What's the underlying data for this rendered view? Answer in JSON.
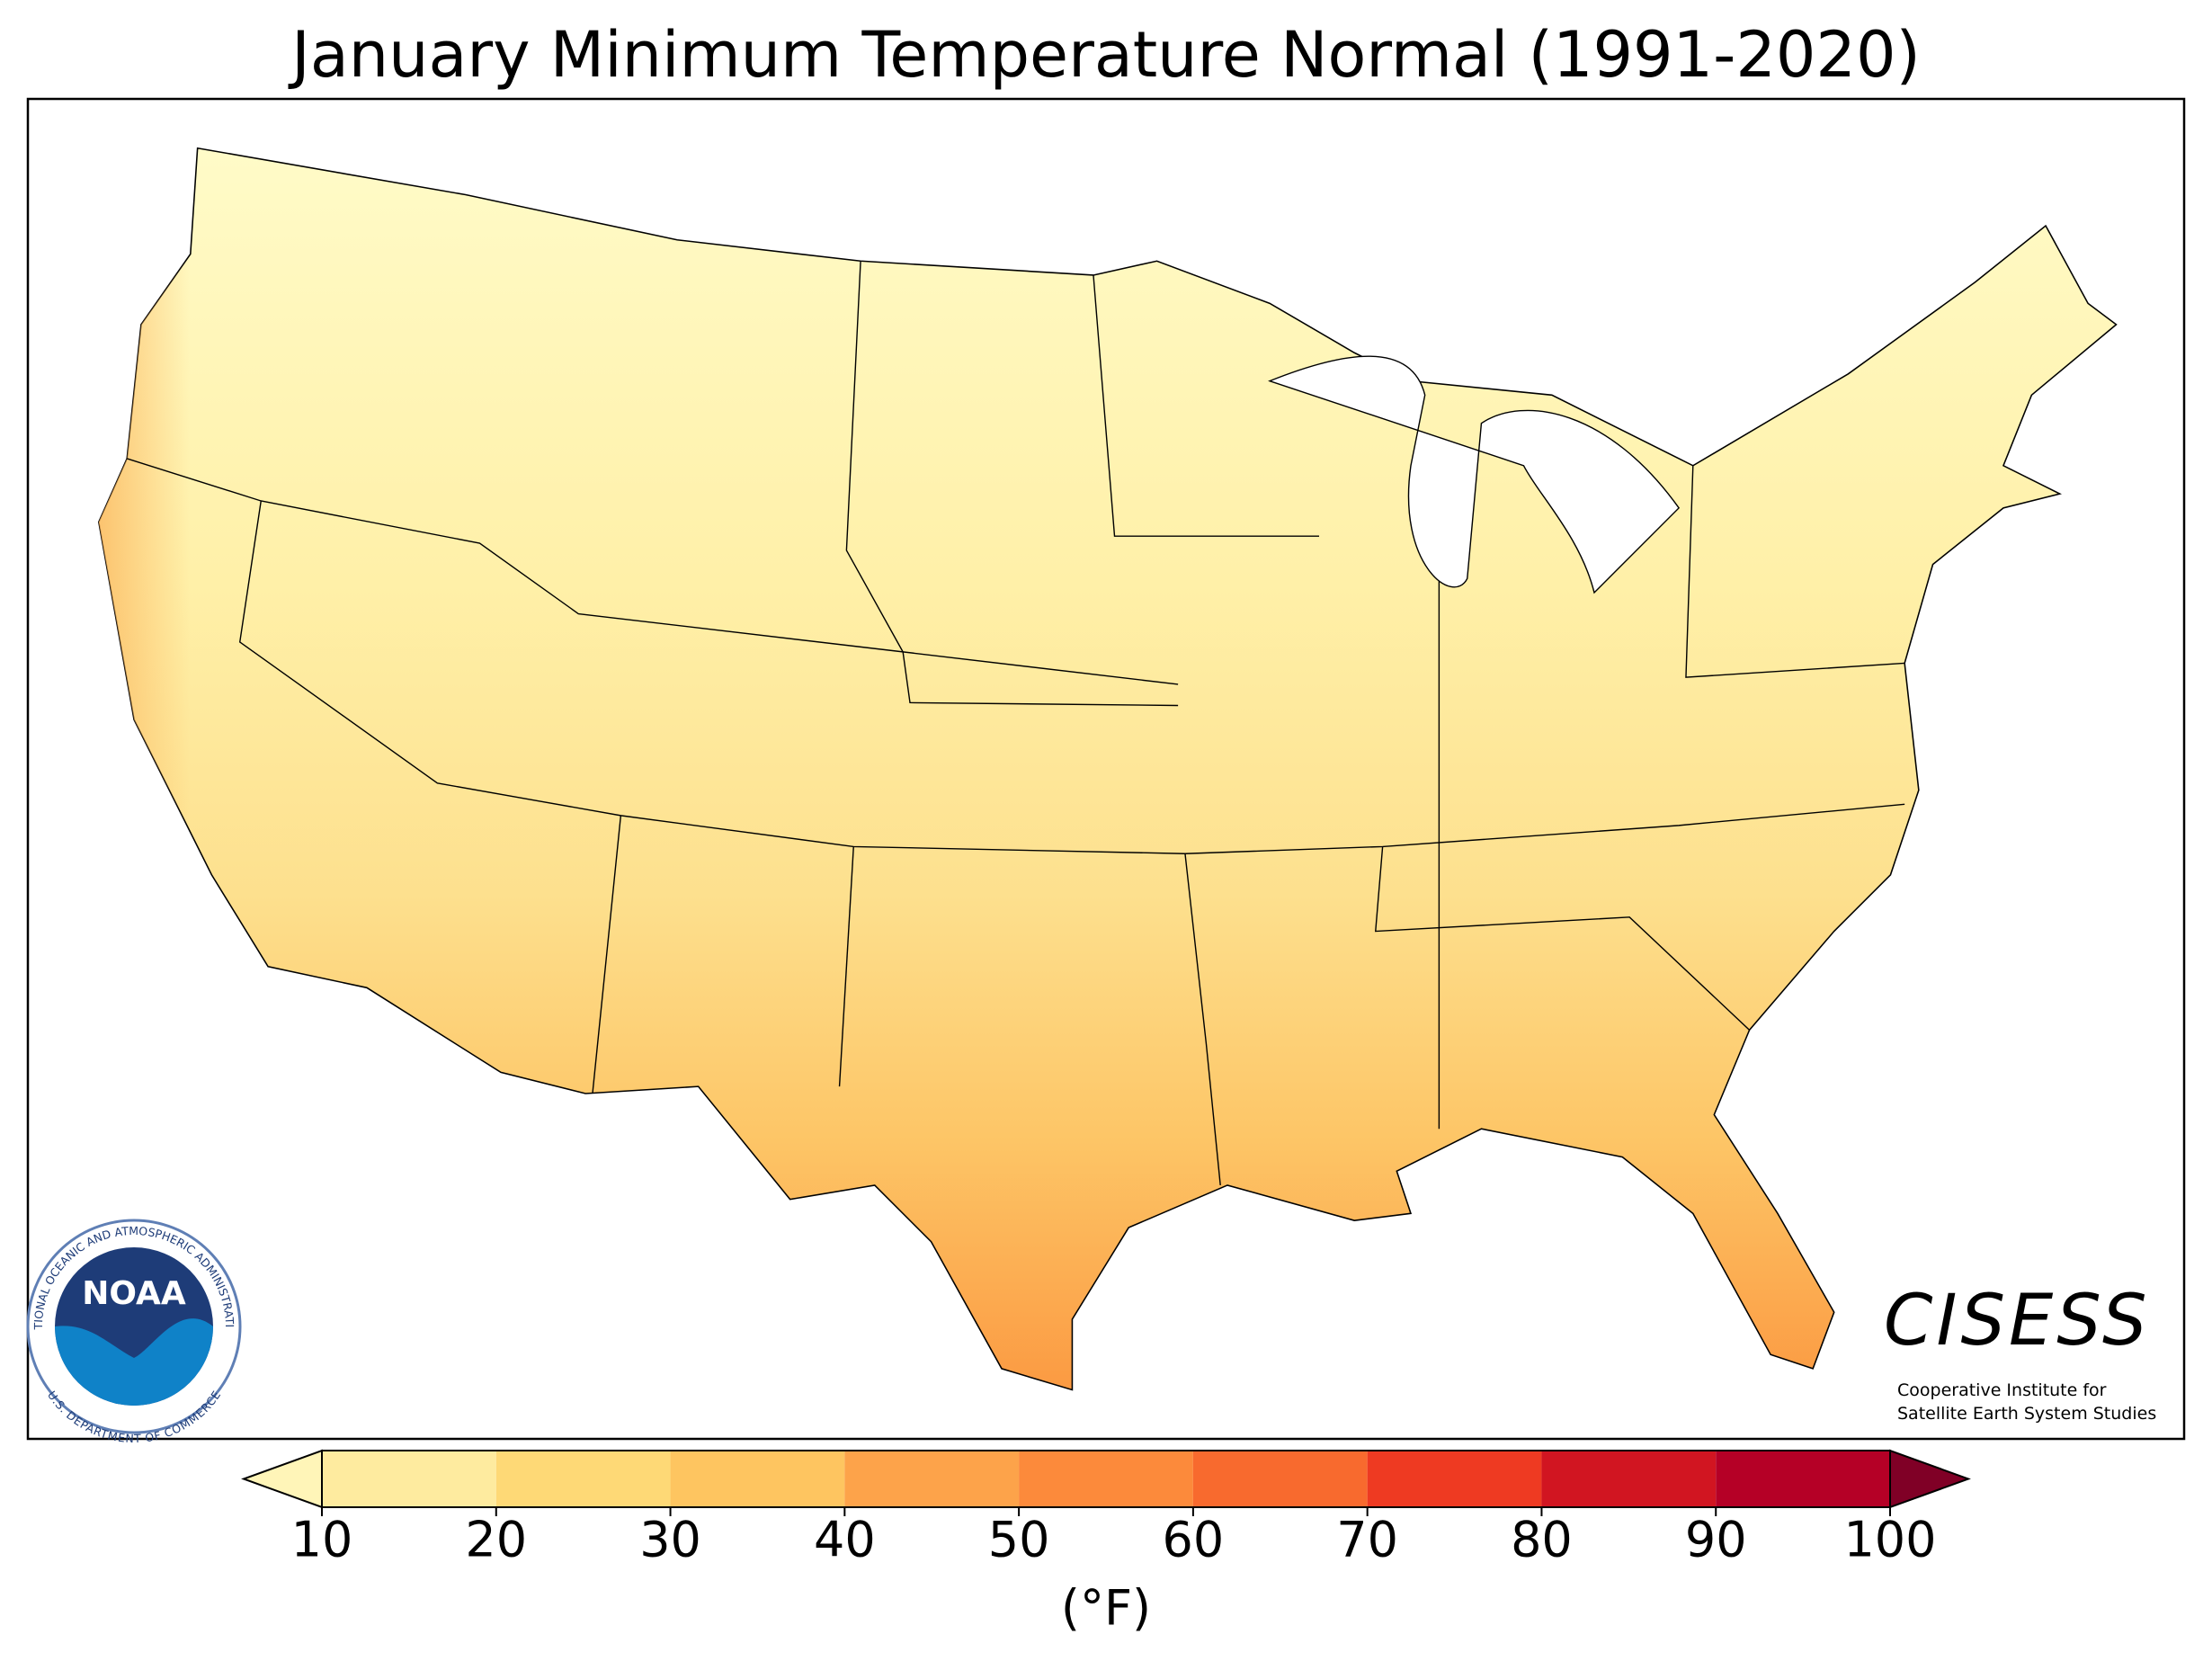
{
  "title": "January Minimum Temperature Normal (1991-2020)",
  "colorbar": {
    "lim": [
      10,
      100
    ],
    "ticks": [
      10,
      20,
      30,
      40,
      50,
      60,
      70,
      80,
      90,
      100
    ],
    "colors": [
      "#feeb9f",
      "#fed976",
      "#fec560",
      "#fda34a",
      "#fc8a3b",
      "#f86a2e",
      "#ee3a22",
      "#d11521",
      "#b50026"
    ],
    "under_color": "#fff5b8",
    "over_color": "#800026",
    "label": "(°F)"
  },
  "logos": {
    "noaa": {
      "name": "NOAA",
      "top_text": "NATIONAL OCEANIC AND ATMOSPHERIC ADMINISTRATION",
      "bottom_text": "U.S. DEPARTMENT OF COMMERCE"
    },
    "cisess": {
      "name": "CISESS",
      "line1": "Cooperative Institute for",
      "line2": "Satellite Earth System Studies"
    }
  }
}
